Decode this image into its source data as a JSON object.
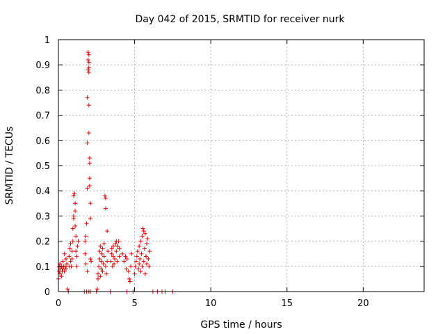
{
  "chart_data": {
    "type": "scatter",
    "title": "Day 042 of 2015, SRMTID for receiver nurk",
    "xlabel": "GPS time / hours",
    "ylabel": "SRMTID / TECUs",
    "xlim": [
      0,
      24
    ],
    "ylim": [
      0,
      1
    ],
    "xticks": [
      0,
      5,
      10,
      15,
      20
    ],
    "yticks": [
      0,
      0.1,
      0.2,
      0.3,
      0.4,
      0.5,
      0.6,
      0.7,
      0.8,
      0.9,
      1
    ],
    "xtick_labels": [
      "0",
      "5",
      "10",
      "15",
      "20"
    ],
    "ytick_labels": [
      "0",
      "0.1",
      "0.2",
      "0.3",
      "0.4",
      "0.5",
      "0.6",
      "0.7",
      "0.8",
      "0.9",
      "1"
    ],
    "grid": true,
    "legend": "none",
    "marker": "plus",
    "color": "#e00000",
    "points": [
      [
        0.0,
        0.05
      ],
      [
        0.05,
        0.08
      ],
      [
        0.05,
        0.1
      ],
      [
        0.1,
        0.07
      ],
      [
        0.1,
        0.11
      ],
      [
        0.15,
        0.09
      ],
      [
        0.2,
        0.1
      ],
      [
        0.2,
        0.06
      ],
      [
        0.25,
        0.08
      ],
      [
        0.3,
        0.12
      ],
      [
        0.3,
        0.09
      ],
      [
        0.35,
        0.1
      ],
      [
        0.4,
        0.15
      ],
      [
        0.4,
        0.08
      ],
      [
        0.45,
        0.1
      ],
      [
        0.5,
        0.09
      ],
      [
        0.5,
        0.13
      ],
      [
        0.55,
        0.11
      ],
      [
        0.6,
        0.01
      ],
      [
        0.65,
        0.0
      ],
      [
        0.7,
        0.1
      ],
      [
        0.7,
        0.14
      ],
      [
        0.75,
        0.17
      ],
      [
        0.8,
        0.19
      ],
      [
        0.8,
        0.12
      ],
      [
        0.85,
        0.1
      ],
      [
        0.9,
        0.13
      ],
      [
        0.9,
        0.16
      ],
      [
        0.95,
        0.2
      ],
      [
        0.95,
        0.25
      ],
      [
        1.0,
        0.29
      ],
      [
        1.0,
        0.3
      ],
      [
        1.0,
        0.38
      ],
      [
        1.05,
        0.39
      ],
      [
        1.1,
        0.35
      ],
      [
        1.1,
        0.32
      ],
      [
        1.1,
        0.26
      ],
      [
        1.15,
        0.22
      ],
      [
        1.15,
        0.16
      ],
      [
        1.2,
        0.1
      ],
      [
        1.2,
        0.14
      ],
      [
        1.25,
        0.18
      ],
      [
        1.3,
        0.2
      ],
      [
        1.7,
        0.0
      ],
      [
        1.75,
        0.15
      ],
      [
        1.75,
        0.2
      ],
      [
        1.8,
        0.22
      ],
      [
        1.8,
        0.11
      ],
      [
        1.85,
        0.0
      ],
      [
        1.85,
        0.27
      ],
      [
        1.9,
        0.08
      ],
      [
        1.9,
        0.41
      ],
      [
        1.9,
        0.59
      ],
      [
        1.9,
        0.77
      ],
      [
        1.95,
        0.88
      ],
      [
        1.95,
        0.92
      ],
      [
        1.95,
        0.95
      ],
      [
        2.0,
        0.87
      ],
      [
        2.0,
        0.89
      ],
      [
        2.0,
        0.91
      ],
      [
        2.0,
        0.94
      ],
      [
        2.0,
        0.63
      ],
      [
        2.0,
        0.74
      ],
      [
        2.05,
        0.53
      ],
      [
        2.05,
        0.51
      ],
      [
        2.05,
        0.45
      ],
      [
        2.05,
        0.42
      ],
      [
        2.1,
        0.35
      ],
      [
        2.1,
        0.29
      ],
      [
        2.1,
        0.13
      ],
      [
        2.15,
        0.12
      ],
      [
        2.0,
        0.0
      ],
      [
        2.1,
        0.0
      ],
      [
        2.5,
        0.0
      ],
      [
        2.55,
        0.01
      ],
      [
        2.6,
        0.05
      ],
      [
        2.6,
        0.07
      ],
      [
        2.65,
        0.1
      ],
      [
        2.7,
        0.13
      ],
      [
        2.7,
        0.16
      ],
      [
        2.75,
        0.18
      ],
      [
        2.75,
        0.06
      ],
      [
        2.8,
        0.09
      ],
      [
        2.8,
        0.12
      ],
      [
        2.85,
        0.15
      ],
      [
        2.9,
        0.17
      ],
      [
        2.9,
        0.08
      ],
      [
        2.95,
        0.11
      ],
      [
        3.0,
        0.14
      ],
      [
        3.0,
        0.19
      ],
      [
        3.05,
        0.38
      ],
      [
        3.1,
        0.37
      ],
      [
        3.1,
        0.33
      ],
      [
        3.1,
        0.1
      ],
      [
        3.15,
        0.07
      ],
      [
        3.2,
        0.24
      ],
      [
        3.2,
        0.12
      ],
      [
        3.25,
        0.16
      ],
      [
        3.4,
        0.0
      ],
      [
        3.45,
        0.12
      ],
      [
        3.5,
        0.15
      ],
      [
        3.5,
        0.17
      ],
      [
        3.55,
        0.1
      ],
      [
        3.6,
        0.14
      ],
      [
        3.6,
        0.18
      ],
      [
        3.65,
        0.11
      ],
      [
        3.7,
        0.13
      ],
      [
        3.75,
        0.19
      ],
      [
        3.8,
        0.2
      ],
      [
        3.8,
        0.16
      ],
      [
        3.85,
        0.12
      ],
      [
        3.9,
        0.18
      ],
      [
        3.95,
        0.2
      ],
      [
        4.0,
        0.17
      ],
      [
        4.0,
        0.14
      ],
      [
        4.2,
        0.15
      ],
      [
        4.3,
        0.12
      ],
      [
        4.4,
        0.14
      ],
      [
        4.45,
        0.09
      ],
      [
        4.5,
        0.0
      ],
      [
        4.5,
        0.13
      ],
      [
        4.6,
        0.08
      ],
      [
        4.65,
        0.05
      ],
      [
        4.7,
        0.04
      ],
      [
        4.75,
        0.1
      ],
      [
        4.8,
        0.15
      ],
      [
        4.9,
        0.0
      ],
      [
        5.0,
        0.07
      ],
      [
        5.05,
        0.1
      ],
      [
        5.1,
        0.12
      ],
      [
        5.15,
        0.14
      ],
      [
        5.2,
        0.16
      ],
      [
        5.25,
        0.09
      ],
      [
        5.3,
        0.18
      ],
      [
        5.3,
        0.11
      ],
      [
        5.35,
        0.13
      ],
      [
        5.4,
        0.2
      ],
      [
        5.4,
        0.08
      ],
      [
        5.45,
        0.15
      ],
      [
        5.5,
        0.22
      ],
      [
        5.5,
        0.1
      ],
      [
        5.55,
        0.25
      ],
      [
        5.6,
        0.24
      ],
      [
        5.6,
        0.12
      ],
      [
        5.65,
        0.17
      ],
      [
        5.7,
        0.23
      ],
      [
        5.7,
        0.07
      ],
      [
        5.75,
        0.14
      ],
      [
        5.8,
        0.19
      ],
      [
        5.8,
        0.11
      ],
      [
        5.85,
        0.21
      ],
      [
        5.9,
        0.13
      ],
      [
        5.95,
        0.1
      ],
      [
        6.0,
        0.16
      ],
      [
        6.2,
        0.0
      ],
      [
        6.5,
        0.0
      ],
      [
        6.8,
        0.0
      ],
      [
        7.0,
        0.0
      ],
      [
        7.5,
        0.0
      ]
    ]
  }
}
